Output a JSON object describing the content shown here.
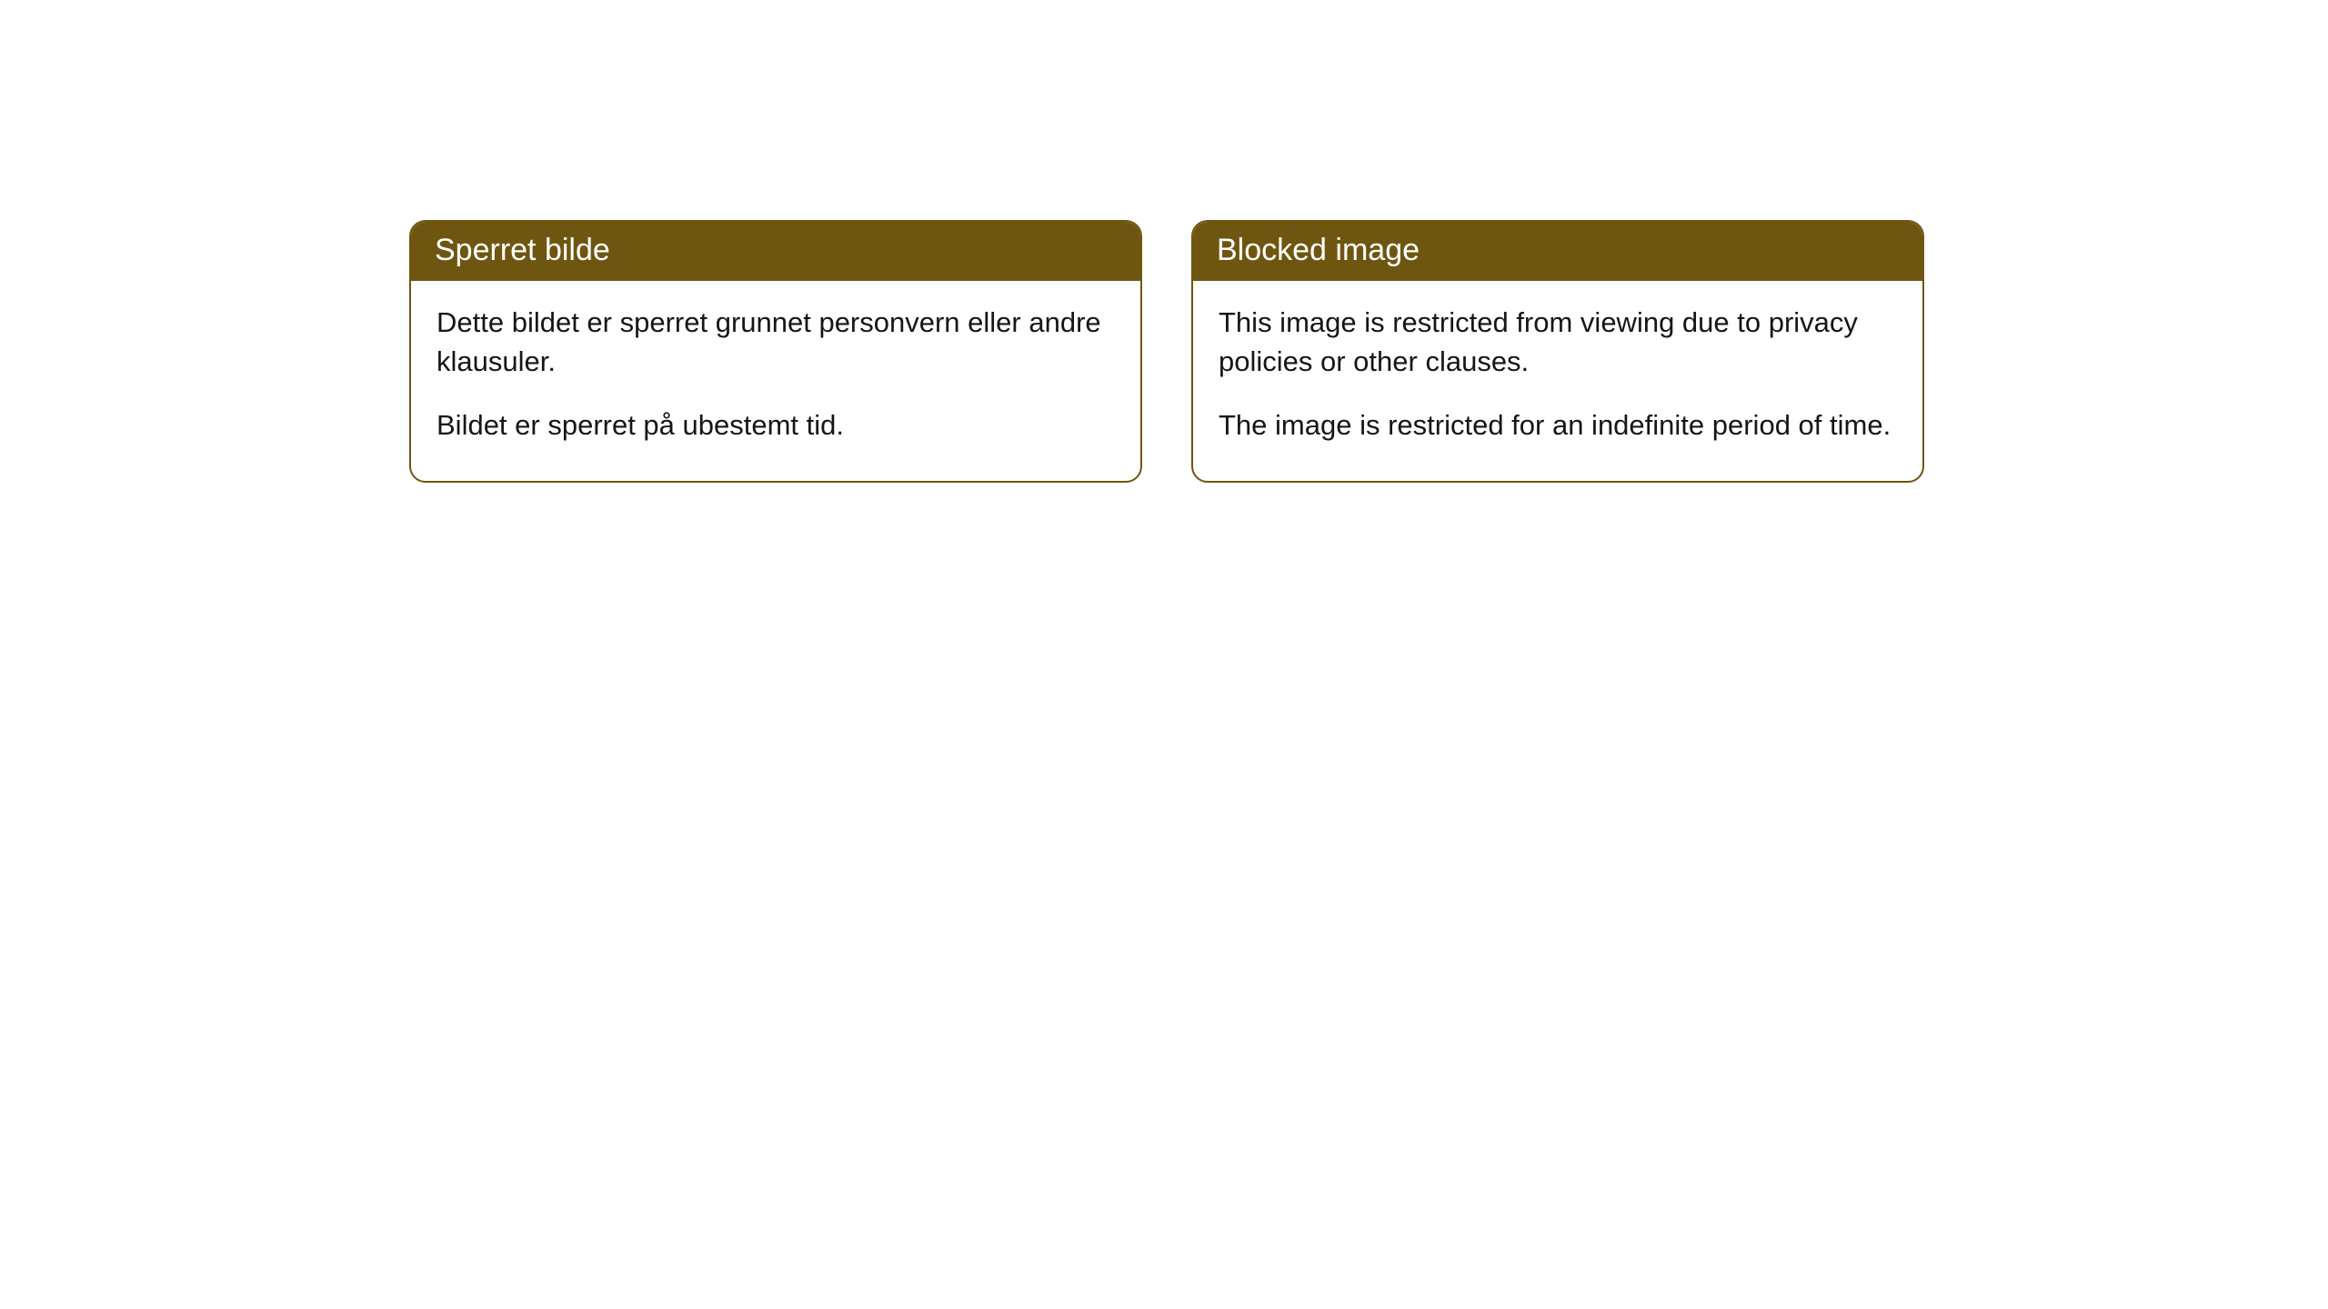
{
  "cards": [
    {
      "title": "Sperret bilde",
      "paragraph1": "Dette bildet er sperret grunnet personvern eller andre klausuler.",
      "paragraph2": "Bildet er sperret på ubestemt tid."
    },
    {
      "title": "Blocked image",
      "paragraph1": "This image is restricted from viewing due to privacy policies or other clauses.",
      "paragraph2": "The image is restricted for an indefinite period of time."
    }
  ],
  "style": {
    "header_background": "#6f5610",
    "header_text_color": "#ffffff",
    "border_color": "#6f5610",
    "body_background": "#ffffff",
    "body_text_color": "#161618",
    "border_radius": 18,
    "title_fontsize": 34,
    "body_fontsize": 31
  }
}
